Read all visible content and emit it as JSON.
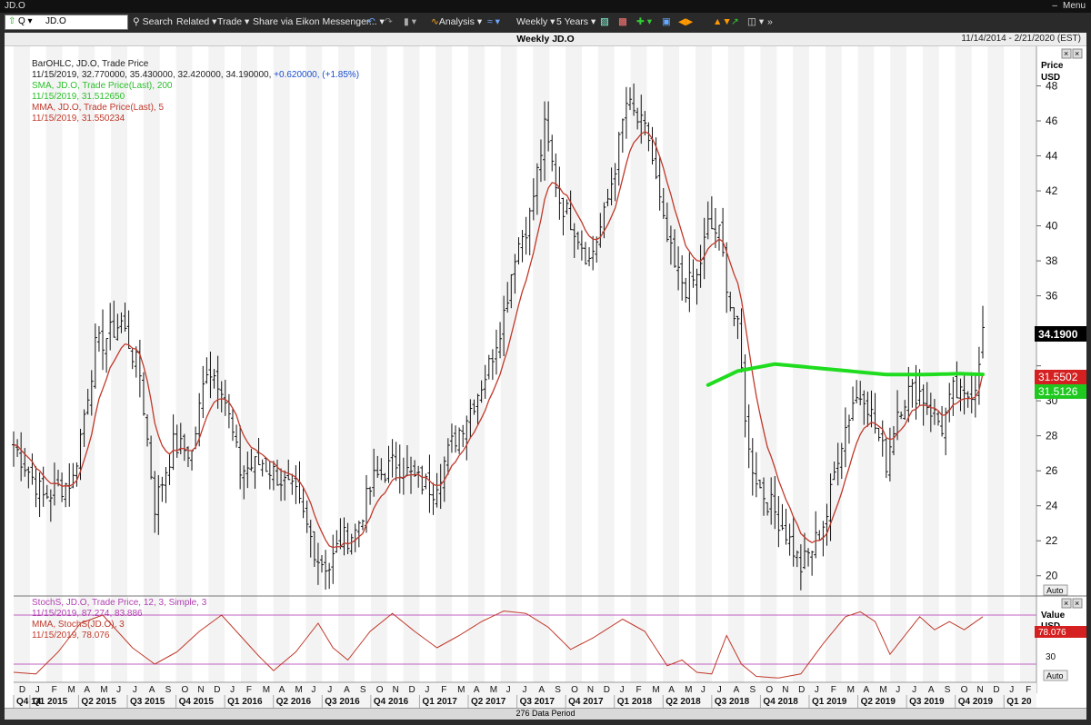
{
  "window": {
    "title": "JD.O",
    "menu_label": "Menu"
  },
  "toolbar": {
    "symbol": "JD.O",
    "search_label": "Search",
    "related_label": "Related",
    "trade_label": "Trade",
    "share_label": "Share via Eikon Messenger...",
    "analysis_label": "Analysis",
    "interval_label": "Weekly",
    "range_label": "5 Years"
  },
  "header": {
    "title": "Weekly JD.O",
    "date_range": "11/14/2014 - 2/21/2020 (EST)"
  },
  "footer": {
    "data_period": "276 Data Period"
  },
  "legend_price": {
    "line1": "BarOHLC, JD.O, Trade Price",
    "line2_prefix": "11/15/2019, 32.770000, 35.430000, 32.420000, 34.190000, ",
    "line2_change": "+0.620000, (+1.85%)",
    "line3": "SMA, JD.O, Trade Price(Last), 200",
    "line4": "11/15/2019, 31.512650",
    "line5": "MMA, JD.O, Trade Price(Last), 5",
    "line6": "11/15/2019, 31.550234"
  },
  "legend_stoch": {
    "line1": "StochS, JD.O, Trade Price, 12, 3, Simple, 3",
    "line2": "11/15/2019, 87.274, 83.886",
    "line3": "MMA, StochS(JD.O), 3",
    "line4": "11/15/2019, 78.076"
  },
  "axis_labels": {
    "price": "Price",
    "currency": "USD",
    "auto": "Auto",
    "value": "Value",
    "value_unit": "USD"
  },
  "price_tags": {
    "last": "34.1900",
    "mma": "31.5502",
    "sma": "31.5126",
    "stoch_mma": "78.076"
  },
  "colors": {
    "sma": "#1fdc1f",
    "mma": "#c0392b",
    "stoch": "#c060c0",
    "stoch_mma": "#c0392b",
    "last_tag": "#000000",
    "mma_tag": "#d42020",
    "sma_tag": "#1fc81f"
  },
  "chart_data": [
    {
      "type": "ohlc",
      "title": "Weekly JD.O",
      "ylabel": "Price USD",
      "ylim": [
        19,
        50
      ],
      "yticks": [
        20,
        22,
        24,
        26,
        28,
        30,
        32,
        34,
        36,
        38,
        40,
        42,
        44,
        46,
        48
      ],
      "ytick_labels": [
        "20",
        "22",
        "24",
        "26",
        "28",
        "30",
        "",
        "",
        "36",
        "38",
        "40",
        "42",
        "44",
        "46",
        "48"
      ],
      "month_ticks": [
        "D",
        "J",
        "F",
        "M",
        "A",
        "M",
        "J",
        "J",
        "A",
        "S",
        "O",
        "N",
        "D",
        "J",
        "F",
        "M",
        "A",
        "M",
        "J",
        "J",
        "A",
        "S",
        "O",
        "N",
        "D",
        "J",
        "F",
        "M",
        "A",
        "M",
        "J",
        "J",
        "A",
        "S",
        "O",
        "N",
        "D",
        "J",
        "F",
        "M",
        "A",
        "M",
        "J",
        "J",
        "A",
        "S",
        "O",
        "N",
        "D",
        "J",
        "F",
        "M",
        "A",
        "M",
        "J",
        "J",
        "A",
        "S",
        "O",
        "N",
        "D",
        "J",
        "F"
      ],
      "quarter_ticks": [
        "Q4 14",
        "Q1 2015",
        "Q2 2015",
        "Q3 2015",
        "Q4 2015",
        "Q1 2016",
        "Q2 2016",
        "Q3 2016",
        "Q4 2016",
        "Q1 2017",
        "Q2 2017",
        "Q3 2017",
        "Q4 2017",
        "Q1 2018",
        "Q2 2018",
        "Q3 2018",
        "Q4 2018",
        "Q1 2019",
        "Q2 2019",
        "Q3 2019",
        "Q4 2019",
        "Q1 20"
      ],
      "close_series": {
        "name": "JD.O weekly close (approx.)",
        "points": [
          [
            0,
            27.5
          ],
          [
            8,
            24.5
          ],
          [
            16,
            25.5
          ],
          [
            22,
            33.0
          ],
          [
            29,
            34.5
          ],
          [
            34,
            31.5
          ],
          [
            38,
            24.0
          ],
          [
            43,
            27.5
          ],
          [
            48,
            27.0
          ],
          [
            52,
            32.0
          ],
          [
            56,
            31.0
          ],
          [
            61,
            26.0
          ],
          [
            67,
            26.5
          ],
          [
            72,
            25.5
          ],
          [
            76,
            24.5
          ],
          [
            82,
            21.0
          ],
          [
            85,
            20.5
          ],
          [
            88,
            22.0
          ],
          [
            92,
            22.5
          ],
          [
            97,
            25.5
          ],
          [
            103,
            26.5
          ],
          [
            108,
            25.5
          ],
          [
            113,
            25.0
          ],
          [
            118,
            27.5
          ],
          [
            124,
            30.0
          ],
          [
            128,
            32.0
          ],
          [
            132,
            35.0
          ],
          [
            135,
            38.5
          ],
          [
            139,
            40.5
          ],
          [
            143,
            45.5
          ],
          [
            147,
            41.5
          ],
          [
            151,
            40.0
          ],
          [
            155,
            38.0
          ],
          [
            159,
            40.5
          ],
          [
            162,
            43.5
          ],
          [
            165,
            47.0
          ],
          [
            168,
            46.0
          ],
          [
            171,
            45.0
          ],
          [
            175,
            40.0
          ],
          [
            178,
            37.5
          ],
          [
            181,
            36.5
          ],
          [
            184,
            37.0
          ],
          [
            187,
            40.0
          ],
          [
            190,
            39.5
          ],
          [
            193,
            35.5
          ],
          [
            195,
            34.0
          ],
          [
            198,
            27.0
          ],
          [
            201,
            25.0
          ],
          [
            204,
            24.0
          ],
          [
            208,
            22.5
          ],
          [
            212,
            20.5
          ],
          [
            215,
            21.5
          ],
          [
            219,
            23.5
          ],
          [
            222,
            27.0
          ],
          [
            226,
            30.0
          ],
          [
            229,
            30.5
          ],
          [
            232,
            28.5
          ],
          [
            235,
            26.5
          ],
          [
            238,
            29.5
          ],
          [
            241,
            30.5
          ],
          [
            244,
            30.5
          ],
          [
            247,
            29.5
          ],
          [
            250,
            28.5
          ],
          [
            253,
            30.5
          ],
          [
            256,
            30.0
          ],
          [
            259,
            31.0
          ],
          [
            261,
            34.19
          ]
        ]
      },
      "last_bar": {
        "date": "11/15/2019",
        "open": 32.77,
        "high": 35.43,
        "low": 32.42,
        "close": 34.19,
        "change": 0.62,
        "change_pct": 1.85
      },
      "series": [
        {
          "name": "MMA, JD.O, Trade Price(Last), 5",
          "last": 31.550234
        },
        {
          "name": "SMA, JD.O, Trade Price(Last), 200",
          "last": 31.51265,
          "points": [
            [
              187,
              30.9
            ],
            [
              195,
              31.7
            ],
            [
              205,
              32.1
            ],
            [
              215,
              31.9
            ],
            [
              225,
              31.7
            ],
            [
              235,
              31.5
            ],
            [
              245,
              31.5
            ],
            [
              255,
              31.55
            ],
            [
              261,
              31.51
            ]
          ]
        }
      ]
    },
    {
      "type": "line",
      "title": "StochS, JD.O, Trade Price, 12, 3, Simple, 3",
      "ylabel": "Value USD",
      "ylim": [
        0,
        100
      ],
      "yticks": [
        30
      ],
      "levels": [
        20,
        80
      ],
      "series": [
        {
          "name": "StochS %K",
          "last": 87.274
        },
        {
          "name": "StochS %D",
          "last": 83.886
        },
        {
          "name": "MMA, StochS(JD.O), 3",
          "last": 78.076,
          "points": [
            [
              0,
              10
            ],
            [
              6,
              8
            ],
            [
              12,
              35
            ],
            [
              18,
              70
            ],
            [
              24,
              80
            ],
            [
              28,
              60
            ],
            [
              32,
              40
            ],
            [
              38,
              20
            ],
            [
              44,
              35
            ],
            [
              50,
              60
            ],
            [
              56,
              80
            ],
            [
              60,
              60
            ],
            [
              66,
              30
            ],
            [
              70,
              12
            ],
            [
              76,
              35
            ],
            [
              82,
              70
            ],
            [
              86,
              40
            ],
            [
              90,
              25
            ],
            [
              96,
              60
            ],
            [
              102,
              82
            ],
            [
              108,
              60
            ],
            [
              114,
              40
            ],
            [
              120,
              55
            ],
            [
              126,
              72
            ],
            [
              132,
              85
            ],
            [
              138,
              82
            ],
            [
              144,
              65
            ],
            [
              150,
              38
            ],
            [
              156,
              52
            ],
            [
              164,
              75
            ],
            [
              170,
              60
            ],
            [
              176,
              18
            ],
            [
              180,
              25
            ],
            [
              184,
              10
            ],
            [
              188,
              8
            ],
            [
              192,
              55
            ],
            [
              196,
              20
            ],
            [
              200,
              5
            ],
            [
              206,
              3
            ],
            [
              212,
              8
            ],
            [
              218,
              45
            ],
            [
              224,
              78
            ],
            [
              228,
              84
            ],
            [
              232,
              72
            ],
            [
              236,
              32
            ],
            [
              240,
              55
            ],
            [
              244,
              78
            ],
            [
              248,
              62
            ],
            [
              252,
              72
            ],
            [
              256,
              62
            ],
            [
              261,
              78
            ]
          ]
        }
      ]
    }
  ]
}
